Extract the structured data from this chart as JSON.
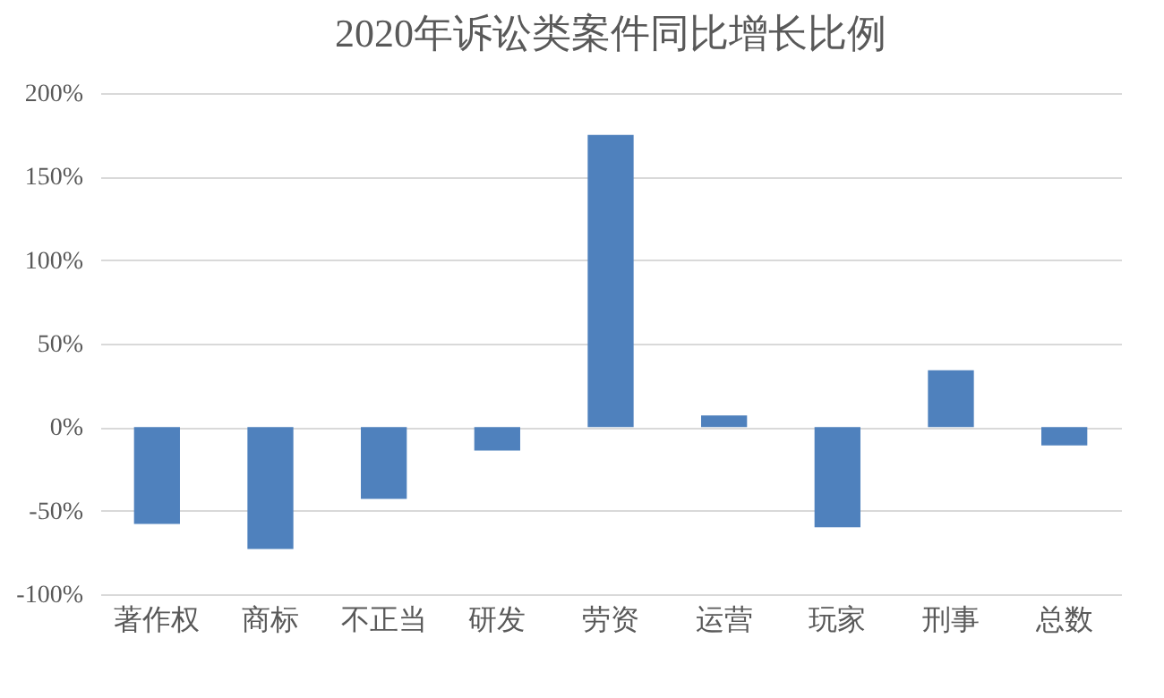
{
  "chart_data": {
    "type": "bar",
    "title": "2020年诉讼类案件同比增长比例",
    "categories": [
      "著作权",
      "商标",
      "不正当",
      "研发",
      "劳资",
      "运营",
      "玩家",
      "刑事",
      "总数"
    ],
    "values": [
      -58,
      -73,
      -43,
      -14,
      175,
      7,
      -60,
      34,
      -11
    ],
    "color": "#4f81bd",
    "ylim": [
      -100,
      200
    ],
    "yticks": [
      {
        "value": -100,
        "label": "-100%"
      },
      {
        "value": -50,
        "label": "-50%"
      },
      {
        "value": 0,
        "label": "0%"
      },
      {
        "value": 50,
        "label": "50%"
      },
      {
        "value": 100,
        "label": "100%"
      },
      {
        "value": 150,
        "label": "150%"
      },
      {
        "value": 200,
        "label": "200%"
      }
    ],
    "grid": "y"
  }
}
